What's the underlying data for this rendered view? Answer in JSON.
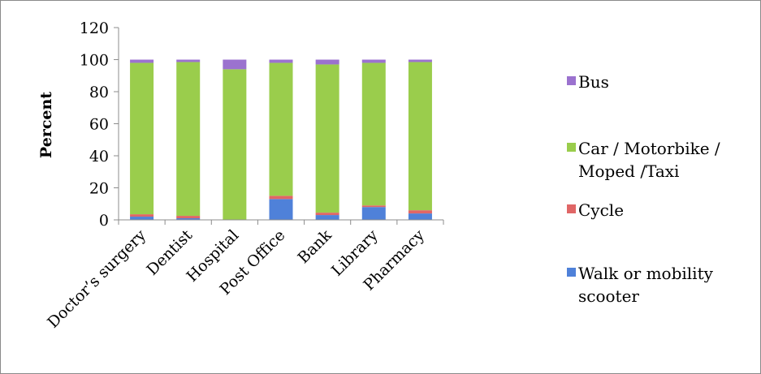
{
  "chart_data": {
    "type": "bar",
    "stacked": true,
    "title": "",
    "xlabel": "",
    "ylabel": "Percent",
    "ylim": [
      0,
      120
    ],
    "yticks": [
      0,
      20,
      40,
      60,
      80,
      100,
      120
    ],
    "grid": false,
    "legend_position": "right",
    "categories": [
      "Doctor’s surgery",
      "Dentist",
      "Hospital",
      "Post Office",
      "Bank",
      "Library",
      "Pharmacy"
    ],
    "series": [
      {
        "name": "Walk or mobility scooter",
        "color": "#4f81d9",
        "values": [
          2,
          1,
          0,
          13,
          3,
          8,
          4
        ]
      },
      {
        "name": "Cycle",
        "color": "#e06666",
        "values": [
          1.5,
          1.5,
          0,
          2,
          1.5,
          1,
          2
        ]
      },
      {
        "name": "Car / Motorbike / Moped /Taxi",
        "color": "#9acd4c",
        "values": [
          94.5,
          96,
          94,
          83,
          92.5,
          89,
          92.5
        ]
      },
      {
        "name": "Bus",
        "color": "#9b72cf",
        "values": [
          2,
          1.5,
          6,
          2,
          3,
          2,
          1.5
        ]
      }
    ],
    "legend_order": [
      "Bus",
      "Car / Motorbike / Moped /Taxi",
      "Cycle",
      "Walk or mobility scooter"
    ],
    "legend_lines": {
      "Bus": [
        "Bus"
      ],
      "Car / Motorbike / Moped /Taxi": [
        "Car / Motorbike /",
        "Moped /Taxi"
      ],
      "Cycle": [
        "Cycle"
      ],
      "Walk or mobility scooter": [
        "Walk or mobility",
        "scooter"
      ]
    }
  }
}
